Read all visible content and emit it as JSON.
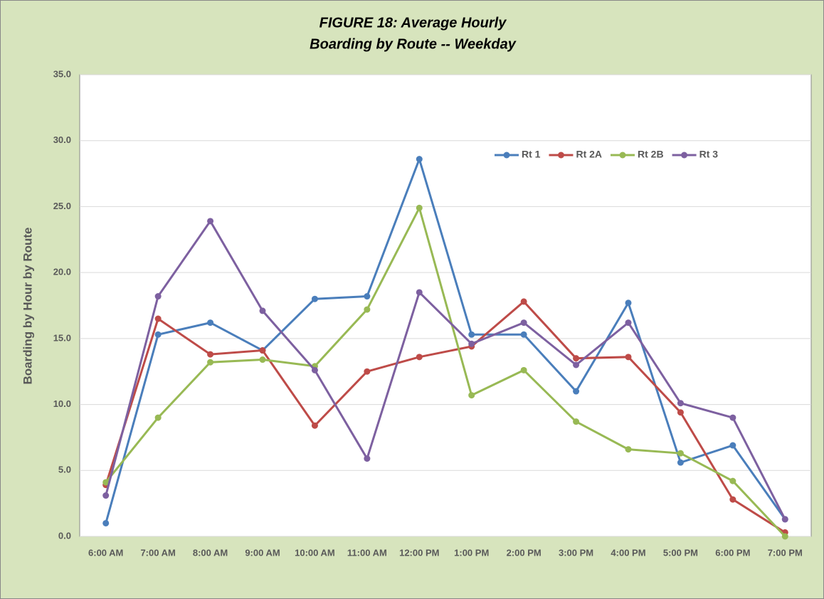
{
  "chart_data": {
    "type": "line",
    "title": [
      "FIGURE 18: Average Hourly",
      "Boarding by Route -- Weekday"
    ],
    "ylabel": "Boarding by Hour by Route",
    "categories": [
      "6:00 AM",
      "7:00 AM",
      "8:00 AM",
      "9:00 AM",
      "10:00 AM",
      "11:00 AM",
      "12:00 PM",
      "1:00 PM",
      "2:00 PM",
      "3:00 PM",
      "4:00 PM",
      "5:00 PM",
      "6:00 PM",
      "7:00 PM"
    ],
    "series": [
      {
        "name": "Rt 1",
        "color": "#4a7ebb",
        "values": [
          1.0,
          15.3,
          16.2,
          14.1,
          18.0,
          18.2,
          28.6,
          15.3,
          15.3,
          11.0,
          17.7,
          5.6,
          6.9,
          1.3
        ]
      },
      {
        "name": "Rt 2A",
        "color": "#be4b48",
        "values": [
          3.9,
          16.5,
          13.8,
          14.1,
          8.4,
          12.5,
          13.6,
          14.4,
          17.8,
          13.5,
          13.6,
          9.4,
          2.8,
          0.3
        ]
      },
      {
        "name": "Rt 2B",
        "color": "#98b954",
        "values": [
          4.1,
          9.0,
          13.2,
          13.4,
          12.9,
          17.2,
          24.9,
          10.7,
          12.6,
          8.7,
          6.6,
          6.3,
          4.2,
          0.0
        ]
      },
      {
        "name": "Rt 3",
        "color": "#7d60a0",
        "values": [
          3.1,
          18.2,
          23.9,
          17.1,
          12.6,
          5.9,
          18.5,
          14.6,
          16.2,
          13.0,
          16.2,
          10.1,
          9.0,
          1.3
        ]
      }
    ],
    "ylim": [
      0,
      35
    ],
    "yticks": [
      {
        "value": 0,
        "label": "0.0"
      },
      {
        "value": 5,
        "label": "5.0"
      },
      {
        "value": 10,
        "label": "10.0"
      },
      {
        "value": 15,
        "label": "15.0"
      },
      {
        "value": 20,
        "label": "20.0"
      },
      {
        "value": 25,
        "label": "25.0"
      },
      {
        "value": 30,
        "label": "30.0"
      },
      {
        "value": 35,
        "label": "35.0"
      }
    ],
    "grid": true,
    "legend": "upper right"
  }
}
